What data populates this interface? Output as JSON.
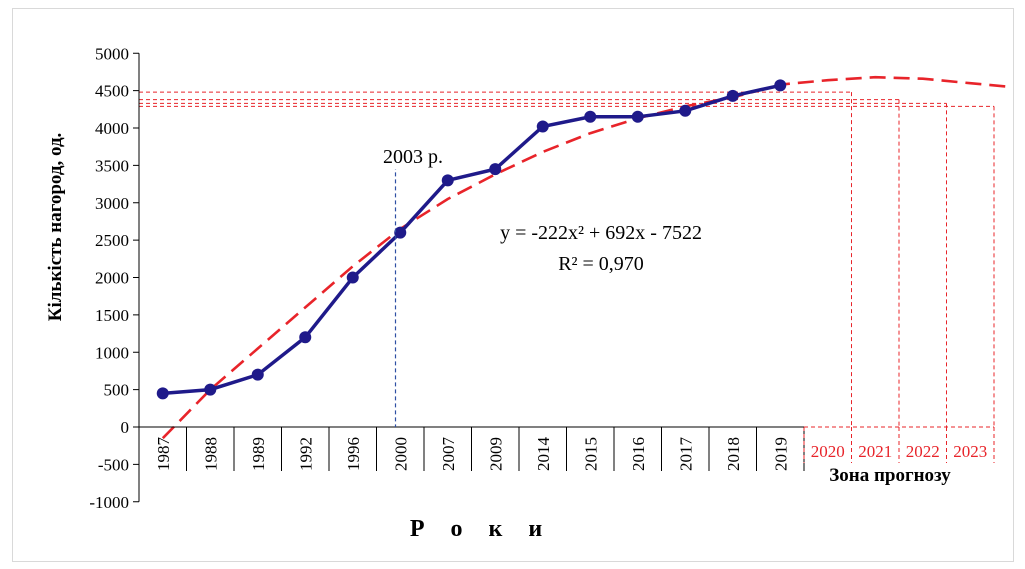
{
  "chart_data": {
    "type": "line",
    "title": "",
    "ylabel": "Кількість нагород, од.",
    "xlabel": "Р о к и",
    "ylim": [
      -1000,
      5000
    ],
    "yticks": [
      "5000",
      "4500",
      "4000",
      "3500",
      "3000",
      "2500",
      "2000",
      "1500",
      "1000",
      "500",
      "0",
      "-500",
      "-1000"
    ],
    "ytick_values": [
      5000,
      4500,
      4000,
      3500,
      3000,
      2500,
      2000,
      1500,
      1000,
      500,
      0,
      -500,
      -1000
    ],
    "categories": [
      "1987",
      "1988",
      "1989",
      "1992",
      "1996",
      "2000",
      "2007",
      "2009",
      "2014",
      "2015",
      "2016",
      "2017",
      "2018",
      "2019"
    ],
    "forecast_categories": [
      "2020",
      "2021",
      "2022",
      "2023"
    ],
    "forecast_zone_label": "Зона прогнозу",
    "series": [
      {
        "values": [
          450,
          500,
          700,
          1200,
          2000,
          2600,
          3300,
          3450,
          4020,
          4150,
          4150,
          4230,
          4430,
          4570
        ],
        "color": "#1f1a8a"
      }
    ],
    "trend": {
      "color": "#e8242a",
      "equation": "y = -222x² + 692x - 7522",
      "r2": "R² = 0,970",
      "values": [
        -150,
        500,
        1050,
        1600,
        2150,
        2650,
        3050,
        3380,
        3680,
        3930,
        4130,
        4290,
        4410,
        4580,
        4640,
        4680,
        4660,
        4600,
        4540
      ]
    },
    "forecast_levels": [
      4480,
      4380,
      4330,
      4290
    ],
    "marker": {
      "label": "2003 р.",
      "position": 5.4,
      "color": "#2e4fa3"
    },
    "grid": false
  }
}
